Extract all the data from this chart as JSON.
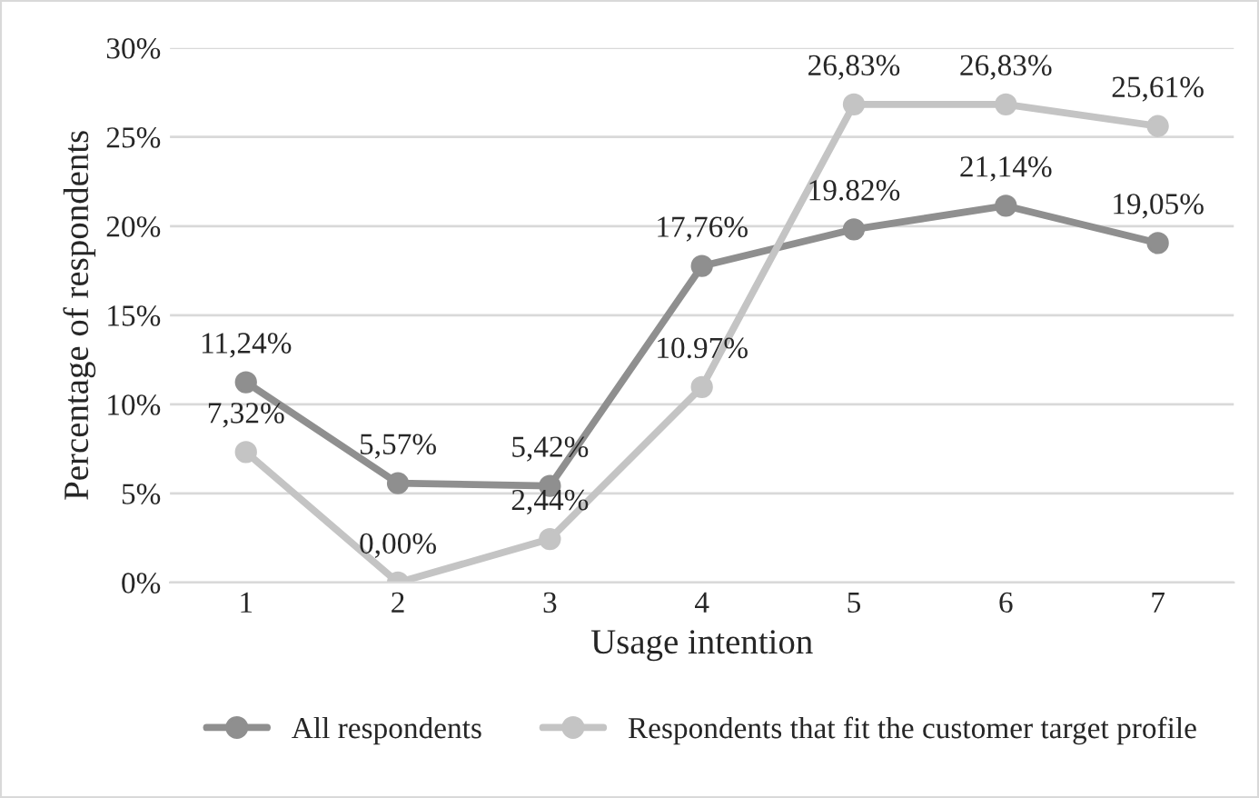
{
  "chart_data": {
    "type": "line",
    "xlabel": "Usage intention",
    "ylabel": "Percentage of respondents",
    "categories": [
      "1",
      "2",
      "3",
      "4",
      "5",
      "6",
      "7"
    ],
    "series": [
      {
        "name": "All respondents",
        "color": "#8f8f8f",
        "values": [
          11.24,
          5.57,
          5.42,
          17.76,
          19.82,
          21.14,
          19.05
        ],
        "value_labels": [
          "11,24%",
          "5,57%",
          "5,42%",
          "17,76%",
          "19.82%",
          "21,14%",
          "19,05%"
        ]
      },
      {
        "name": "Respondents that fit the customer target profile",
        "color": "#c4c4c4",
        "values": [
          7.32,
          0.0,
          2.44,
          10.97,
          26.83,
          26.83,
          25.61
        ],
        "value_labels": [
          "7,32%",
          "0,00%",
          "2,44%",
          "10.97%",
          "26,83%",
          "26,83%",
          "25,61%"
        ]
      }
    ],
    "ylim": [
      0,
      30
    ],
    "yticks": [
      {
        "value": 0,
        "label": "0%"
      },
      {
        "value": 5,
        "label": "5%"
      },
      {
        "value": 10,
        "label": "10%"
      },
      {
        "value": 15,
        "label": "15%"
      },
      {
        "value": 20,
        "label": "20%"
      },
      {
        "value": 25,
        "label": "25%"
      },
      {
        "value": 30,
        "label": "30%"
      }
    ],
    "grid": "y",
    "legend": "bottom",
    "marker": "circle",
    "line_style": "solid"
  }
}
